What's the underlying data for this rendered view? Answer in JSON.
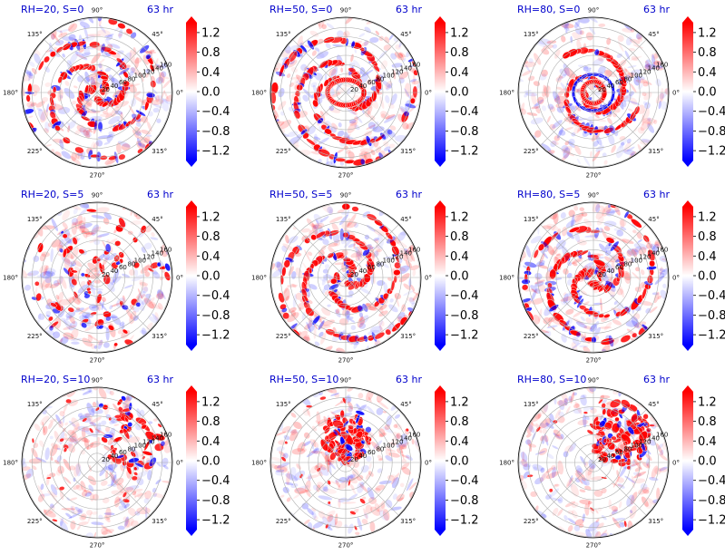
{
  "chart_data": {
    "type": "heatmap",
    "projection": "polar",
    "grid": true,
    "layout": {
      "rows": 3,
      "cols": 3
    },
    "colormap": "bwr",
    "color_range": [
      -1.4,
      1.4
    ],
    "angular_ticks": [
      "0°",
      "45°",
      "90°",
      "135°",
      "180°",
      "225°",
      "270°",
      "315°"
    ],
    "radial_ticks": [
      "20",
      "40",
      "60",
      "80",
      "100",
      "120",
      "140",
      "160"
    ],
    "colorbar_ticks": [
      "1.2",
      "0.8",
      "0.4",
      "0.0",
      "−0.4",
      "−0.8",
      "−1.2"
    ],
    "colorbar_tick_values": [
      1.2,
      0.8,
      0.4,
      0.0,
      -0.4,
      -0.8,
      -1.2
    ],
    "colors": {
      "positive": "#ff0000",
      "negative": "#0000ff",
      "zero": "#ffffff",
      "title": "#0000cc"
    },
    "panels": [
      {
        "title": "RH=20, S=0",
        "time": "63 hr",
        "pattern": "spiral-bands",
        "strength": 0.7
      },
      {
        "title": "RH=50, S=0",
        "time": "63 hr",
        "pattern": "ring-eyewall",
        "strength": 0.9
      },
      {
        "title": "RH=80, S=0",
        "time": "63 hr",
        "pattern": "compact-core",
        "strength": 1.0
      },
      {
        "title": "RH=20, S=5",
        "time": "63 hr",
        "pattern": "scattered-cells",
        "strength": 0.5
      },
      {
        "title": "RH=50, S=5",
        "time": "63 hr",
        "pattern": "spiral-bands",
        "strength": 0.75
      },
      {
        "title": "RH=80, S=5",
        "time": "63 hr",
        "pattern": "spiral-core",
        "strength": 0.95
      },
      {
        "title": "RH=20, S=10",
        "time": "63 hr",
        "pattern": "sparse-ne",
        "strength": 0.45
      },
      {
        "title": "RH=50, S=10",
        "time": "63 hr",
        "pattern": "north-cluster",
        "strength": 0.8
      },
      {
        "title": "RH=80, S=10",
        "time": "63 hr",
        "pattern": "northeast-cluster",
        "strength": 0.9
      }
    ]
  }
}
